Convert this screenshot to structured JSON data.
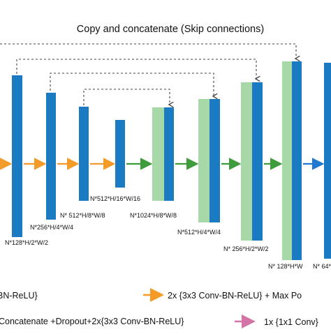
{
  "title": "Copy and concatenate (Skip connections)",
  "colors": {
    "blue": "#1a7ac2",
    "green": "#a7d8a7",
    "orange_arrow": "#f39a28",
    "green_arrow": "#3f9c3c",
    "blue_arrow": "#1f78d1",
    "pink_arrow": "#d374a6",
    "dashed": "#444444"
  },
  "dims": {
    "enc1": "N*128*H/2*W/2",
    "enc2": "N*256*H/4*W/4",
    "enc3": "N* 512*H/8*W/8",
    "bottleneck": "N*512*H/16*W/16",
    "dec1": "N*1024*H/8*W/8",
    "dec2": "N*512*H/4*W/4",
    "dec3": "N* 256*H/2*W/2",
    "dec4": "N* 128*H*W",
    "out": "N* 64*"
  },
  "legend": {
    "item1": "BN-ReLU}",
    "item2": "2x {3x3 Conv-BN-ReLU} + Max Po",
    "item3": "Concatenate +Dropout+2x{3x3 Conv-BN-ReLU}",
    "item4": "1x {1x1 Conv}"
  }
}
